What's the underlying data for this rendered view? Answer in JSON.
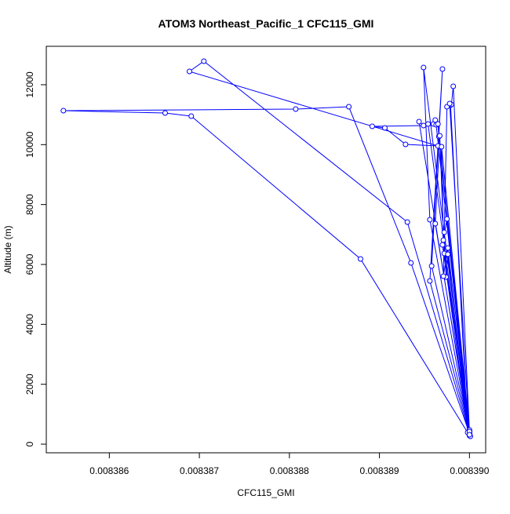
{
  "chart_data": {
    "type": "line",
    "title": "ATOM3 Northeast_Pacific_1 CFC115_GMI",
    "x_label": "CFC115_GMI",
    "y_label": "Altitude (m)",
    "x": [
      0.00839,
      0.00838879,
      0.00838691,
      0.00838662,
      0.00838549,
      0.00838807,
      0.00838866,
      0.00838935,
      0.00839001,
      0.00838931,
      0.00838705,
      0.00838689,
      0.00838965,
      0.00838929,
      0.00838906,
      0.00838892,
      0.00838949,
      0.00838944,
      0.00839,
      0.00838949,
      0.00838956,
      0.00839,
      0.00838954,
      0.0083896,
      0.00838962,
      0.00838963,
      0.00839,
      0.00838965,
      0.00838966,
      0.00839,
      0.00838956,
      0.0083897,
      0.00838958,
      0.00839,
      0.00838962,
      0.00838967,
      0.00838972,
      0.00839,
      0.00838969,
      0.00838971,
      0.00838975,
      0.00838999,
      0.0083897,
      0.00838972,
      0.00838974,
      0.00838976,
      0.00838998,
      0.00838979,
      0.0083898,
      0.00838982,
      0.00839,
      0.00838976,
      0.00838971,
      0.00838975,
      0.00838978,
      0.00839
    ],
    "series": [
      {
        "color": "#0000ff",
        "values": [
          288,
          6183,
          10951,
          11056,
          11134,
          11187,
          11265,
          6052,
          262,
          7414,
          12785,
          12444,
          9955,
          10008,
          10558,
          10610,
          10637,
          10768,
          341,
          12575,
          7493,
          367,
          10689,
          10689,
          10820,
          10663,
          393,
          10689,
          10270,
          419,
          5449,
          12523,
          5947,
          446,
          7362,
          10296,
          6366,
          472,
          9929,
          6812,
          7519,
          367,
          6654,
          7074,
          5580,
          6340,
          393,
          11318,
          11344,
          11947,
          419,
          6550,
          5606,
          11265,
          11370,
          314
        ]
      }
    ],
    "xlim": [
      0.0083853,
      0.00839018
    ],
    "ylim": [
      -288,
      13283
    ],
    "xticks": [
      0.008386,
      0.008387,
      0.008388,
      0.008389,
      {
        "value": 0.00839,
        "label": "0.008390"
      }
    ],
    "yticks": [
      0,
      2000,
      4000,
      6000,
      8000,
      10000,
      12000
    ]
  }
}
